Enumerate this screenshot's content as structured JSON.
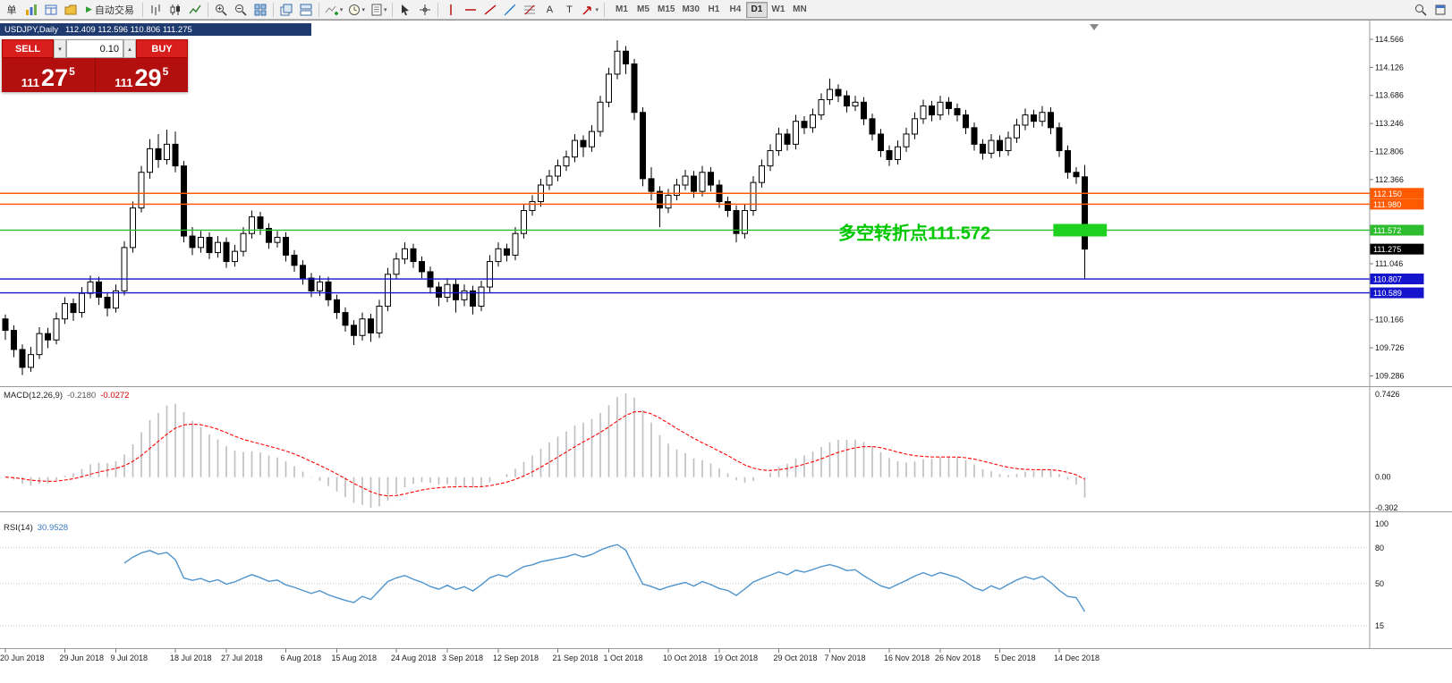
{
  "toolbar": {
    "new_order_label": "单",
    "auto_trading_label": "自动交易",
    "timeframes": [
      "M1",
      "M5",
      "M15",
      "M30",
      "H1",
      "H4",
      "D1",
      "W1",
      "MN"
    ],
    "active_timeframe": "D1"
  },
  "chart": {
    "title": "USDJPY,Daily",
    "ohlc_text": "112.409 112.596 110.806 111.275"
  },
  "trade_panel": {
    "sell_label": "SELL",
    "buy_label": "BUY",
    "volume": "0.10",
    "sell_price": {
      "big": "111",
      "pips": "27",
      "sup": "5"
    },
    "buy_price": {
      "big": "111",
      "pips": "29",
      "sup": "5"
    }
  },
  "chart_data": {
    "type": "candlestick",
    "symbol": "USDJPY",
    "timeframe": "Daily",
    "ohlc_display": {
      "open": "112.409",
      "high": "112.596",
      "low": "110.806",
      "close": "111.275"
    },
    "bull_color": "#ffffff",
    "bear_color": "#000000",
    "outline_color": "#000000",
    "candles": [
      [
        110.18,
        110.25,
        109.85,
        110.0
      ],
      [
        110.0,
        110.08,
        109.58,
        109.7
      ],
      [
        109.7,
        109.78,
        109.3,
        109.42
      ],
      [
        109.42,
        109.74,
        109.35,
        109.62
      ],
      [
        109.62,
        110.05,
        109.55,
        109.95
      ],
      [
        109.95,
        110.04,
        109.72,
        109.85
      ],
      [
        109.85,
        110.28,
        109.78,
        110.18
      ],
      [
        110.18,
        110.52,
        110.1,
        110.42
      ],
      [
        110.42,
        110.5,
        110.15,
        110.28
      ],
      [
        110.28,
        110.68,
        110.2,
        110.58
      ],
      [
        110.58,
        110.86,
        110.5,
        110.76
      ],
      [
        110.76,
        110.84,
        110.4,
        110.52
      ],
      [
        110.52,
        110.6,
        110.22,
        110.35
      ],
      [
        110.35,
        110.72,
        110.28,
        110.62
      ],
      [
        110.62,
        111.4,
        110.55,
        111.3
      ],
      [
        111.3,
        112.02,
        111.22,
        111.92
      ],
      [
        111.92,
        112.58,
        111.85,
        112.48
      ],
      [
        112.48,
        113.0,
        112.38,
        112.85
      ],
      [
        112.85,
        113.08,
        112.55,
        112.68
      ],
      [
        112.68,
        113.15,
        112.6,
        112.92
      ],
      [
        112.92,
        113.12,
        112.48,
        112.58
      ],
      [
        112.58,
        112.66,
        111.38,
        111.48
      ],
      [
        111.48,
        111.62,
        111.18,
        111.3
      ],
      [
        111.3,
        111.56,
        111.22,
        111.46
      ],
      [
        111.46,
        111.54,
        111.12,
        111.22
      ],
      [
        111.22,
        111.48,
        111.14,
        111.38
      ],
      [
        111.38,
        111.46,
        110.98,
        111.08
      ],
      [
        111.08,
        111.34,
        111.0,
        111.24
      ],
      [
        111.24,
        111.62,
        111.16,
        111.52
      ],
      [
        111.52,
        111.88,
        111.44,
        111.78
      ],
      [
        111.78,
        111.86,
        111.5,
        111.6
      ],
      [
        111.6,
        111.68,
        111.28,
        111.38
      ],
      [
        111.38,
        111.56,
        111.3,
        111.46
      ],
      [
        111.46,
        111.54,
        111.08,
        111.18
      ],
      [
        111.18,
        111.26,
        110.92,
        111.02
      ],
      [
        111.02,
        111.1,
        110.72,
        110.82
      ],
      [
        110.82,
        110.9,
        110.52,
        110.62
      ],
      [
        110.62,
        110.86,
        110.54,
        110.76
      ],
      [
        110.76,
        110.84,
        110.38,
        110.48
      ],
      [
        110.48,
        110.56,
        110.18,
        110.28
      ],
      [
        110.28,
        110.36,
        109.98,
        110.08
      ],
      [
        110.08,
        110.16,
        109.77,
        109.92
      ],
      [
        109.92,
        110.28,
        109.84,
        110.18
      ],
      [
        110.18,
        110.26,
        109.82,
        109.96
      ],
      [
        109.96,
        110.48,
        109.88,
        110.38
      ],
      [
        110.38,
        110.98,
        110.3,
        110.88
      ],
      [
        110.88,
        111.22,
        110.8,
        111.12
      ],
      [
        111.12,
        111.38,
        111.04,
        111.28
      ],
      [
        111.28,
        111.36,
        110.98,
        111.08
      ],
      [
        111.08,
        111.16,
        110.82,
        110.92
      ],
      [
        110.92,
        111.0,
        110.58,
        110.68
      ],
      [
        110.68,
        110.76,
        110.38,
        110.52
      ],
      [
        110.52,
        110.82,
        110.44,
        110.72
      ],
      [
        110.72,
        110.8,
        110.28,
        110.48
      ],
      [
        110.48,
        110.72,
        110.38,
        110.62
      ],
      [
        110.62,
        110.7,
        110.25,
        110.38
      ],
      [
        110.38,
        110.78,
        110.3,
        110.68
      ],
      [
        110.68,
        111.18,
        110.6,
        111.08
      ],
      [
        111.08,
        111.38,
        111.0,
        111.28
      ],
      [
        111.28,
        111.36,
        111.08,
        111.18
      ],
      [
        111.18,
        111.62,
        111.1,
        111.52
      ],
      [
        111.52,
        111.98,
        111.44,
        111.88
      ],
      [
        111.88,
        112.12,
        111.8,
        112.02
      ],
      [
        112.02,
        112.38,
        111.94,
        112.28
      ],
      [
        112.28,
        112.52,
        112.2,
        112.42
      ],
      [
        112.42,
        112.68,
        112.34,
        112.58
      ],
      [
        112.58,
        112.82,
        112.5,
        112.72
      ],
      [
        112.72,
        113.08,
        112.64,
        112.98
      ],
      [
        112.98,
        113.06,
        112.72,
        112.88
      ],
      [
        112.88,
        113.22,
        112.8,
        113.12
      ],
      [
        113.12,
        113.68,
        113.04,
        113.58
      ],
      [
        113.58,
        114.12,
        113.5,
        114.02
      ],
      [
        114.02,
        114.55,
        113.94,
        114.38
      ],
      [
        114.38,
        114.46,
        114.02,
        114.18
      ],
      [
        114.18,
        114.26,
        113.3,
        113.42
      ],
      [
        113.42,
        113.5,
        112.26,
        112.38
      ],
      [
        112.38,
        112.56,
        112.04,
        112.18
      ],
      [
        112.18,
        112.26,
        111.62,
        111.92
      ],
      [
        111.92,
        112.22,
        111.84,
        112.12
      ],
      [
        112.12,
        112.38,
        112.04,
        112.28
      ],
      [
        112.28,
        112.52,
        112.2,
        112.42
      ],
      [
        112.42,
        112.5,
        112.08,
        112.18
      ],
      [
        112.18,
        112.58,
        112.1,
        112.48
      ],
      [
        112.48,
        112.56,
        112.18,
        112.28
      ],
      [
        112.28,
        112.36,
        111.92,
        112.02
      ],
      [
        112.02,
        112.1,
        111.78,
        111.88
      ],
      [
        111.88,
        111.96,
        111.38,
        111.52
      ],
      [
        111.52,
        111.98,
        111.44,
        111.88
      ],
      [
        111.88,
        112.42,
        111.8,
        112.32
      ],
      [
        112.32,
        112.68,
        112.24,
        112.58
      ],
      [
        112.58,
        112.92,
        112.5,
        112.82
      ],
      [
        112.82,
        113.18,
        112.74,
        113.08
      ],
      [
        113.08,
        113.16,
        112.82,
        112.92
      ],
      [
        112.92,
        113.38,
        112.84,
        113.28
      ],
      [
        113.28,
        113.36,
        113.08,
        113.18
      ],
      [
        113.18,
        113.48,
        113.1,
        113.38
      ],
      [
        113.38,
        113.72,
        113.3,
        113.62
      ],
      [
        113.62,
        113.95,
        113.54,
        113.78
      ],
      [
        113.78,
        113.86,
        113.58,
        113.68
      ],
      [
        113.68,
        113.76,
        113.42,
        113.52
      ],
      [
        113.52,
        113.68,
        113.44,
        113.58
      ],
      [
        113.58,
        113.66,
        113.22,
        113.32
      ],
      [
        113.32,
        113.4,
        112.98,
        113.08
      ],
      [
        113.08,
        113.16,
        112.72,
        112.82
      ],
      [
        112.82,
        112.9,
        112.58,
        112.68
      ],
      [
        112.68,
        112.98,
        112.6,
        112.88
      ],
      [
        112.88,
        113.18,
        112.8,
        113.08
      ],
      [
        113.08,
        113.42,
        113.0,
        113.32
      ],
      [
        113.32,
        113.62,
        113.24,
        113.52
      ],
      [
        113.52,
        113.6,
        113.28,
        113.38
      ],
      [
        113.38,
        113.68,
        113.3,
        113.58
      ],
      [
        113.58,
        113.66,
        113.38,
        113.48
      ],
      [
        113.48,
        113.56,
        113.28,
        113.38
      ],
      [
        113.38,
        113.46,
        113.08,
        113.18
      ],
      [
        113.18,
        113.26,
        112.82,
        112.92
      ],
      [
        112.92,
        113.0,
        112.68,
        112.78
      ],
      [
        112.78,
        113.08,
        112.7,
        112.98
      ],
      [
        112.98,
        113.06,
        112.72,
        112.82
      ],
      [
        112.82,
        113.12,
        112.74,
        113.02
      ],
      [
        113.02,
        113.32,
        112.94,
        113.22
      ],
      [
        113.22,
        113.48,
        113.14,
        113.38
      ],
      [
        113.38,
        113.46,
        113.18,
        113.28
      ],
      [
        113.28,
        113.52,
        113.2,
        113.42
      ],
      [
        113.42,
        113.5,
        113.08,
        113.18
      ],
      [
        113.18,
        113.26,
        112.72,
        112.82
      ],
      [
        112.82,
        112.9,
        112.38,
        112.48
      ],
      [
        112.48,
        112.56,
        112.3,
        112.41
      ],
      [
        112.409,
        112.596,
        110.806,
        111.275
      ]
    ],
    "date_ticks": [
      [
        "20 Jun 2018",
        0
      ],
      [
        "29 Jun 2018",
        7
      ],
      [
        "9 Jul 2018",
        13
      ],
      [
        "18 Jul 2018",
        20
      ],
      [
        "27 Jul 2018",
        26
      ],
      [
        "6 Aug 2018",
        33
      ],
      [
        "15 Aug 2018",
        39
      ],
      [
        "24 Aug 2018",
        46
      ],
      [
        "3 Sep 2018",
        52
      ],
      [
        "12 Sep 2018",
        58
      ],
      [
        "21 Sep 2018",
        65
      ],
      [
        "1 Oct 2018",
        71
      ],
      [
        "10 Oct 2018",
        78
      ],
      [
        "19 Oct 2018",
        84
      ],
      [
        "29 Oct 2018",
        91
      ],
      [
        "7 Nov 2018",
        97
      ],
      [
        "16 Nov 2018",
        104
      ],
      [
        "26 Nov 2018",
        110
      ],
      [
        "5 Dec 2018",
        117
      ],
      [
        "14 Dec 2018",
        124
      ]
    ],
    "y_axis_prices": [
      114.566,
      114.126,
      113.686,
      113.246,
      112.806,
      112.366,
      111.046,
      110.166,
      109.726,
      109.286
    ],
    "hlines": [
      {
        "price": 112.15,
        "label": "112.150",
        "color": "#ff5a00"
      },
      {
        "price": 111.98,
        "label": "111.980",
        "color": "#ff5a00"
      },
      {
        "price": 111.572,
        "label": "111.572",
        "color": "#2ebd2e"
      },
      {
        "price": 110.807,
        "label": "110.807",
        "color": "#1414cc"
      },
      {
        "price": 110.589,
        "label": "110.589",
        "color": "#1414cc"
      }
    ],
    "current_price": {
      "price": 111.275,
      "label": "111.275",
      "bg": "#000000"
    },
    "highlight_box": {
      "price": 111.572,
      "from_candle": 123.3,
      "to_candle": 129.6,
      "color": "#1fd11f"
    },
    "annotation": {
      "text": "多空转折点111.572",
      "color": "#00c800",
      "at_candle": 98,
      "at_price": 111.43
    },
    "macd": {
      "label": "MACD(12,26,9)",
      "main_value": "-0.2180",
      "signal_value": "-0.0272",
      "fast": 12,
      "slow": 26,
      "signal": 9,
      "axis_labels": [
        "0.7426",
        "0.00",
        "-0.302"
      ],
      "hist_color": "#bdbdbd",
      "signal_color": "#ff0000"
    },
    "rsi": {
      "label": "RSI(14)",
      "value": "30.9528",
      "period": 14,
      "levels": [
        80,
        50,
        15
      ],
      "axis_labels": [
        "100",
        "80",
        "50",
        "15"
      ],
      "color": "#4f94cd"
    }
  }
}
